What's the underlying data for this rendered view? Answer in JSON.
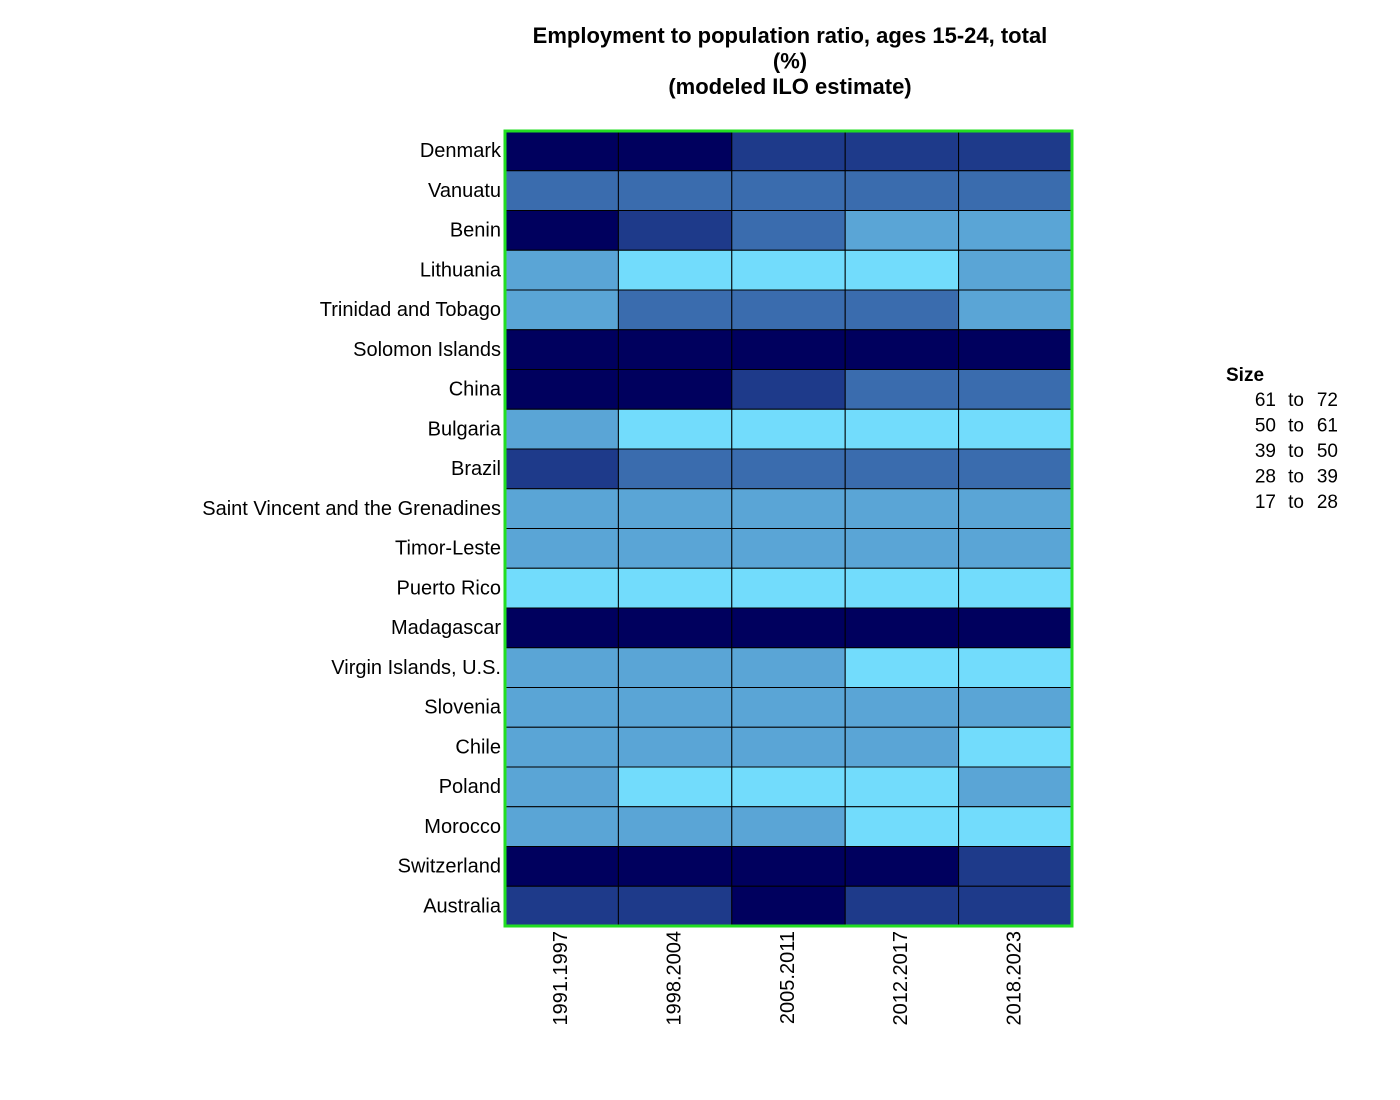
{
  "chart_data": {
    "type": "heatmap",
    "title": [
      "Employment to population ratio, ages 15-24, total",
      "(%)",
      "(modeled ILO estimate)"
    ],
    "rows": [
      "Denmark",
      "Vanuatu",
      "Benin",
      "Lithuania",
      "Trinidad and Tobago",
      "Solomon Islands",
      "China",
      "Bulgaria",
      "Brazil",
      "Saint Vincent and the Grenadines",
      "Timor-Leste",
      "Puerto Rico",
      "Madagascar",
      "Virgin Islands, U.S.",
      "Slovenia",
      "Chile",
      "Poland",
      "Morocco",
      "Switzerland",
      "Australia"
    ],
    "columns": [
      "1991.1997",
      "1998.2004",
      "2005.2011",
      "2012.2017",
      "2018.2023"
    ],
    "values": [
      [
        66,
        66,
        55,
        55,
        55
      ],
      [
        44,
        44,
        44,
        44,
        44
      ],
      [
        66,
        55,
        44,
        33,
        33
      ],
      [
        33,
        23,
        23,
        23,
        33
      ],
      [
        33,
        44,
        44,
        44,
        33
      ],
      [
        66,
        66,
        66,
        66,
        66
      ],
      [
        66,
        66,
        55,
        44,
        44
      ],
      [
        33,
        23,
        23,
        23,
        23
      ],
      [
        55,
        44,
        44,
        44,
        44
      ],
      [
        33,
        33,
        33,
        33,
        33
      ],
      [
        33,
        33,
        33,
        33,
        33
      ],
      [
        23,
        23,
        23,
        23,
        23
      ],
      [
        66,
        66,
        66,
        66,
        66
      ],
      [
        33,
        33,
        33,
        23,
        23
      ],
      [
        33,
        33,
        33,
        33,
        33
      ],
      [
        33,
        33,
        33,
        33,
        23
      ],
      [
        33,
        23,
        23,
        23,
        33
      ],
      [
        33,
        33,
        33,
        23,
        23
      ],
      [
        66,
        66,
        66,
        66,
        55
      ],
      [
        55,
        55,
        66,
        55,
        55
      ]
    ],
    "border_color": "#22dd22",
    "legend": {
      "title": "Size",
      "separator": "to",
      "bins": [
        {
          "from": 61,
          "to": 72,
          "color": "#00005e"
        },
        {
          "from": 50,
          "to": 61,
          "color": "#1e3a8a"
        },
        {
          "from": 39,
          "to": 50,
          "color": "#3a6cae"
        },
        {
          "from": 28,
          "to": 39,
          "color": "#5aa5d6"
        },
        {
          "from": 17,
          "to": 28,
          "color": "#72dcfc"
        }
      ]
    }
  }
}
